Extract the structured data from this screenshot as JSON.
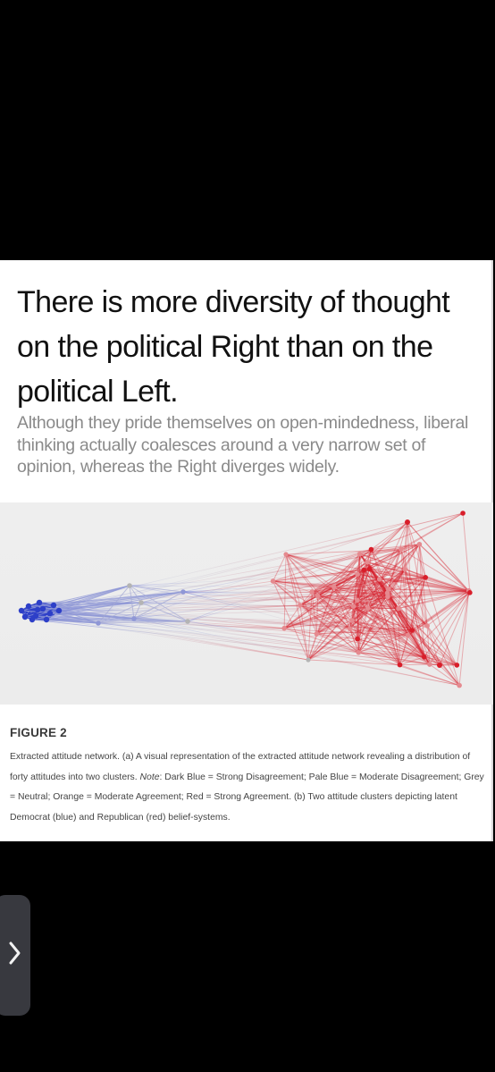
{
  "article": {
    "headline": "There is more diversity of thought on the political Right than on the political Left.",
    "subhead": "Although they pride themselves on open-mindedness, liberal thinking actually coalesces around a very narrow set of opinion, whereas the Right diverges widely."
  },
  "figure": {
    "label": "FIGURE 2",
    "caption_part1": "Extracted attitude network. (a) A visual representation of the extracted attitude network revealing a distribution of forty attitudes into two clusters. ",
    "caption_note_label": "Note",
    "caption_part2": ": Dark Blue = Strong Disagreement; Pale Blue = Moderate Disagreement; Grey = Neutral; Orange = Moderate Agreement; Red = Strong Agreement. (b) Two attitude clusters depicting latent Democrat (blue) and Republican (red) belief-systems.",
    "colors": {
      "strong_disagreement": "#2d3fc8",
      "moderate_disagreement": "#8f97d6",
      "neutral": "#b4b4b4",
      "moderate_agreement": "#e58a8f",
      "strong_agreement": "#d81e2a"
    }
  },
  "ui": {
    "side_tab_icon": "chevron-right-icon"
  }
}
